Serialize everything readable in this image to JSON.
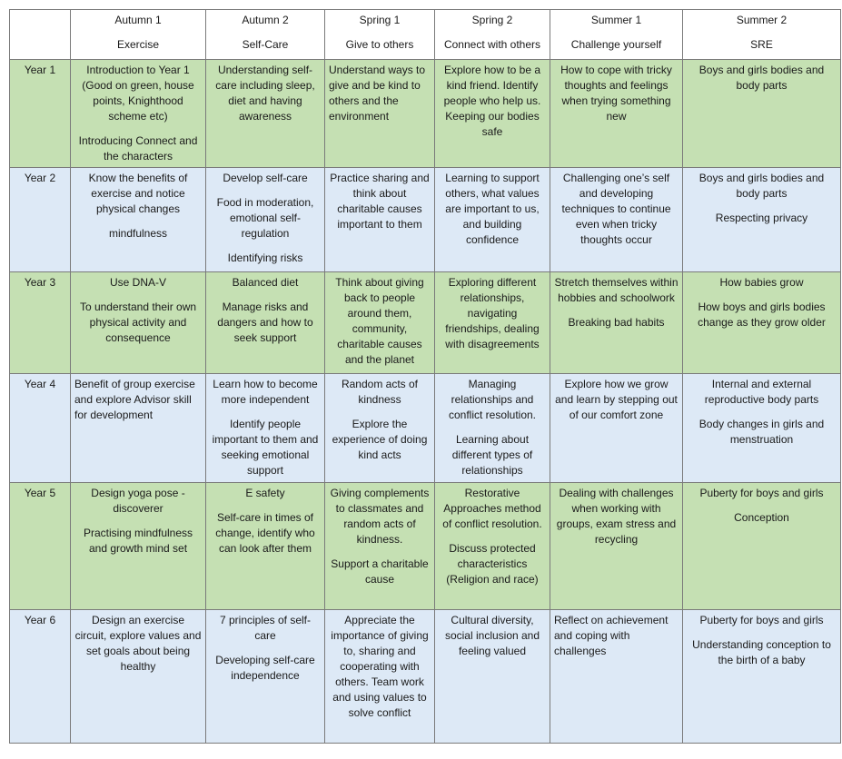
{
  "colors": {
    "green_row": "#c5e0b3",
    "blue_row": "#dde9f6"
  },
  "headers": [
    {
      "term": "Autumn 1",
      "theme": "Exercise"
    },
    {
      "term": "Autumn 2",
      "theme": "Self-Care"
    },
    {
      "term": "Spring 1",
      "theme": "Give to others"
    },
    {
      "term": "Spring 2",
      "theme": "Connect with others"
    },
    {
      "term": "Summer 1",
      "theme": "Challenge yourself"
    },
    {
      "term": "Summer 2",
      "theme": "SRE"
    }
  ],
  "rows": [
    {
      "year": "Year 1",
      "color": "green",
      "cells": [
        {
          "align": "c",
          "paras": [
            "Introduction to Year 1 (Good on green, house points, Knighthood scheme etc)",
            "Introducing Connect and the characters"
          ]
        },
        {
          "align": "c",
          "paras": [
            "Understanding self-care including sleep, diet and having awareness"
          ]
        },
        {
          "align": "l",
          "paras": [
            "Understand ways to give and be kind to others and the environment"
          ]
        },
        {
          "align": "c",
          "paras": [
            "Explore how to be a kind friend. Identify people who help us. Keeping our bodies safe"
          ]
        },
        {
          "align": "c",
          "paras": [
            "How to cope with tricky thoughts and feelings when trying something new"
          ]
        },
        {
          "align": "c",
          "paras": [
            "Boys and girls bodies and body parts"
          ]
        }
      ]
    },
    {
      "year": "Year 2",
      "color": "blue",
      "cells": [
        {
          "align": "c",
          "paras": [
            "Know the benefits of exercise and notice physical changes",
            "mindfulness"
          ]
        },
        {
          "align": "c",
          "paras": [
            "Develop self-care",
            "Food in moderation, emotional self-regulation",
            "Identifying risks"
          ]
        },
        {
          "align": "c",
          "paras": [
            "Practice sharing and think about charitable causes important to them"
          ]
        },
        {
          "align": "c",
          "paras": [
            "Learning to support others, what values are important to us, and building confidence"
          ]
        },
        {
          "align": "c",
          "paras": [
            "Challenging one’s self and developing techniques to continue even when tricky thoughts occur"
          ]
        },
        {
          "align": "c",
          "paras": [
            "Boys and girls bodies and body parts",
            "Respecting privacy"
          ]
        }
      ]
    },
    {
      "year": "Year 3",
      "color": "green",
      "cells": [
        {
          "align": "c",
          "paras": [
            "Use DNA-V",
            "To understand their own physical activity and consequence"
          ]
        },
        {
          "align": "c",
          "paras": [
            "Balanced diet",
            "Manage risks and dangers and how to seek support"
          ]
        },
        {
          "align": "c",
          "paras": [
            "Think about giving back to people around them, community, charitable causes and the planet"
          ]
        },
        {
          "align": "c",
          "paras": [
            "Exploring different relationships, navigating friendships, dealing with disagreements"
          ]
        },
        {
          "align": "c",
          "paras": [
            "Stretch themselves within hobbies and schoolwork",
            "Breaking bad habits"
          ]
        },
        {
          "align": "c",
          "paras": [
            "How babies grow",
            "How boys and girls bodies change as they grow older"
          ]
        }
      ]
    },
    {
      "year": "Year 4",
      "color": "blue",
      "cells": [
        {
          "align": "l",
          "paras": [
            "Benefit of group exercise and explore Advisor skill for development"
          ]
        },
        {
          "align": "c",
          "paras": [
            "Learn how to become more independent",
            "Identify people important to them and seeking emotional support"
          ]
        },
        {
          "align": "c",
          "paras": [
            "Random acts of kindness",
            "Explore the experience of doing kind acts"
          ]
        },
        {
          "align": "c",
          "paras": [
            "Managing relationships and conflict resolution.",
            "Learning about different types of relationships"
          ]
        },
        {
          "align": "c",
          "paras": [
            "Explore how we grow and learn by stepping out of our comfort zone"
          ]
        },
        {
          "align": "c",
          "paras": [
            "Internal and external reproductive body parts",
            "Body changes in girls and menstruation"
          ]
        }
      ]
    },
    {
      "year": "Year 5",
      "color": "green",
      "cells": [
        {
          "align": "c",
          "paras": [
            "Design yoga pose - discoverer",
            "Practising mindfulness and growth mind set"
          ]
        },
        {
          "align": "c",
          "paras": [
            "E safety",
            "Self-care in times of change, identify who can look after them"
          ]
        },
        {
          "align": "c",
          "paras": [
            "Giving complements to classmates and random acts of kindness.",
            "Support a charitable cause"
          ]
        },
        {
          "align": "c",
          "paras": [
            "Restorative Approaches method of conflict resolution.",
            "Discuss protected characteristics (Religion and race)"
          ]
        },
        {
          "align": "c",
          "paras": [
            "Dealing with challenges when working with groups, exam stress and recycling"
          ]
        },
        {
          "align": "c",
          "paras": [
            "Puberty for boys and girls",
            "Conception"
          ]
        }
      ]
    },
    {
      "year": "Year 6",
      "color": "blue",
      "cells": [
        {
          "align": "c",
          "paras": [
            "Design an exercise circuit, explore values and set goals about being healthy"
          ]
        },
        {
          "align": "c",
          "paras": [
            "7 principles of self-care",
            "Developing self-care independence"
          ]
        },
        {
          "align": "c",
          "paras": [
            "Appreciate the importance of giving to, sharing and cooperating with others. Team work and using values to solve conflict"
          ]
        },
        {
          "align": "c",
          "paras": [
            "Cultural diversity, social inclusion and feeling valued"
          ]
        },
        {
          "align": "l",
          "paras": [
            "Reflect on achievement and coping with challenges"
          ]
        },
        {
          "align": "c",
          "paras": [
            "Puberty for boys and girls",
            "Understanding conception to the birth of a baby"
          ]
        }
      ]
    }
  ]
}
